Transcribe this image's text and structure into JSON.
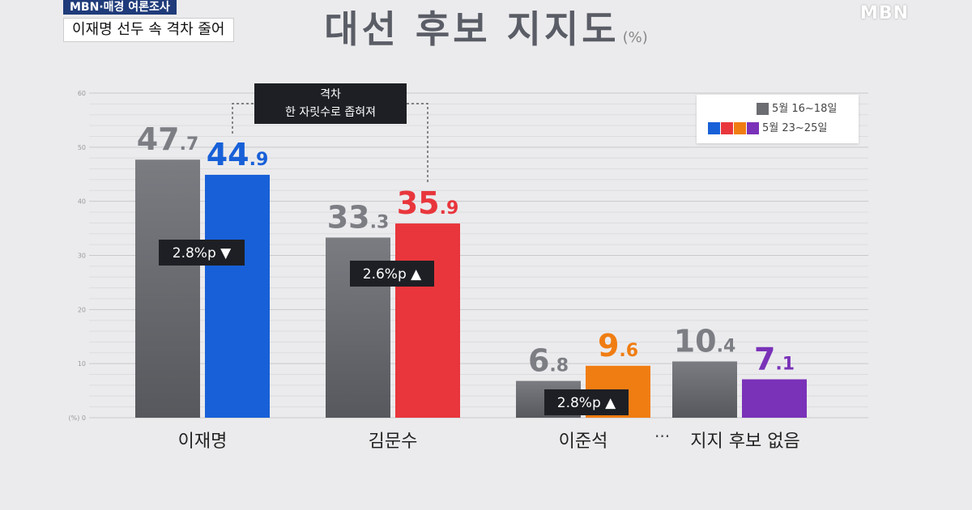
{
  "broadcast": {
    "tag": "MBN·매경 여론조사",
    "subtitle": "이재명 선두 속 격차 줄어",
    "logo": "MBN"
  },
  "callout": {
    "line1": "격차",
    "line2": "한 자릿수로 좁혀져"
  },
  "chart_data": {
    "type": "bar",
    "title": "대선 후보 지지도",
    "unit": "(%)",
    "ylim": [
      0,
      60
    ],
    "yticks": [
      0,
      10,
      20,
      30,
      40,
      50,
      60
    ],
    "ytick_labels": [
      "(%) 0",
      "10",
      "20",
      "30",
      "40",
      "50",
      "60"
    ],
    "grid": true,
    "legend_position": "top-right",
    "categories": [
      "이재명",
      "김문수",
      "이준석",
      "지지 후보 없음"
    ],
    "series": [
      {
        "name": "5월 16~18일",
        "values": [
          47.7,
          33.3,
          6.8,
          10.4
        ],
        "color": "#6b6d72"
      },
      {
        "name": "5월 23~25일",
        "values": [
          44.9,
          35.9,
          9.6,
          7.1
        ],
        "colors": [
          "#1860d8",
          "#e8363c",
          "#f07d12",
          "#7a32b8"
        ]
      }
    ],
    "changes": [
      {
        "category": "이재명",
        "text": "2.8%p ▼"
      },
      {
        "category": "김문수",
        "text": "2.6%p ▲"
      },
      {
        "category": "이준석",
        "text": "2.8%p ▲"
      }
    ],
    "ellipsis": "···"
  }
}
